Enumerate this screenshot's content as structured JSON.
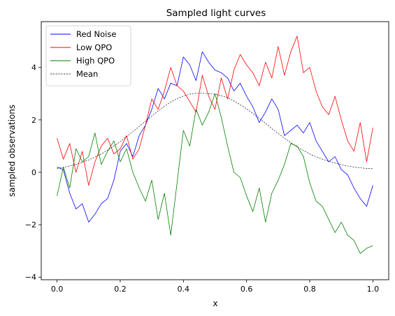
{
  "chart_data": {
    "type": "line",
    "title": "Sampled light curves",
    "xlabel": "x",
    "ylabel": "sampled observations",
    "xlim": [
      -0.05,
      1.05
    ],
    "ylim": [
      -4.1,
      5.75
    ],
    "xticks": [
      0.0,
      0.2,
      0.4,
      0.6,
      0.8,
      1.0
    ],
    "xtick_labels": [
      "0.0",
      "0.2",
      "0.4",
      "0.6",
      "0.8",
      "1.0"
    ],
    "yticks": [
      -4,
      -2,
      0,
      2,
      4
    ],
    "ytick_labels": [
      "−4",
      "−2",
      "0",
      "2",
      "4"
    ],
    "grid": false,
    "legend_position": "upper-left",
    "series": [
      {
        "name": "Red Noise",
        "color": "#0000ff",
        "style": "solid",
        "x": [
          0.0,
          0.02,
          0.04,
          0.06,
          0.08,
          0.1,
          0.12,
          0.14,
          0.16,
          0.18,
          0.2,
          0.22,
          0.24,
          0.26,
          0.28,
          0.3,
          0.32,
          0.34,
          0.36,
          0.38,
          0.4,
          0.42,
          0.44,
          0.46,
          0.48,
          0.5,
          0.52,
          0.54,
          0.56,
          0.58,
          0.6,
          0.62,
          0.64,
          0.66,
          0.68,
          0.7,
          0.72,
          0.74,
          0.76,
          0.78,
          0.8,
          0.82,
          0.84,
          0.86,
          0.88,
          0.9,
          0.92,
          0.94,
          0.96,
          0.98,
          1.0
        ],
        "y": [
          0.2,
          0.1,
          -0.8,
          -1.4,
          -1.2,
          -1.9,
          -1.6,
          -1.2,
          -1.0,
          -0.3,
          0.8,
          1.1,
          0.6,
          1.4,
          1.8,
          2.4,
          3.2,
          2.8,
          3.4,
          3.3,
          4.4,
          4.1,
          3.5,
          4.6,
          4.2,
          3.9,
          3.8,
          3.6,
          3.1,
          3.4,
          2.9,
          2.5,
          1.9,
          2.3,
          2.8,
          2.4,
          1.4,
          1.6,
          1.8,
          1.5,
          1.9,
          1.2,
          0.8,
          0.4,
          0.6,
          0.1,
          -0.1,
          -0.6,
          -1.0,
          -1.3,
          -0.5
        ]
      },
      {
        "name": "Low QPO",
        "color": "#ff0000",
        "style": "solid",
        "x": [
          0.0,
          0.02,
          0.04,
          0.06,
          0.08,
          0.1,
          0.12,
          0.14,
          0.16,
          0.18,
          0.2,
          0.22,
          0.24,
          0.26,
          0.28,
          0.3,
          0.32,
          0.34,
          0.36,
          0.38,
          0.4,
          0.42,
          0.44,
          0.46,
          0.48,
          0.5,
          0.52,
          0.54,
          0.56,
          0.58,
          0.6,
          0.62,
          0.64,
          0.66,
          0.68,
          0.7,
          0.72,
          0.74,
          0.76,
          0.78,
          0.8,
          0.82,
          0.84,
          0.86,
          0.88,
          0.9,
          0.92,
          0.94,
          0.96,
          0.98,
          1.0
        ],
        "y": [
          1.3,
          0.5,
          1.1,
          0.0,
          0.8,
          -0.5,
          0.4,
          1.0,
          1.3,
          0.7,
          0.9,
          1.4,
          0.5,
          0.9,
          1.8,
          2.8,
          2.4,
          3.1,
          4.0,
          3.3,
          3.1,
          2.7,
          2.3,
          3.7,
          2.9,
          2.4,
          3.6,
          2.8,
          3.9,
          4.5,
          4.1,
          3.8,
          3.3,
          4.2,
          3.6,
          4.8,
          3.7,
          4.6,
          5.2,
          3.8,
          4.0,
          3.1,
          2.5,
          2.2,
          2.9,
          2.0,
          1.2,
          0.8,
          1.9,
          0.4,
          1.7
        ]
      },
      {
        "name": "High QPO",
        "color": "#008000",
        "style": "solid",
        "x": [
          0.0,
          0.02,
          0.04,
          0.06,
          0.08,
          0.1,
          0.12,
          0.14,
          0.16,
          0.18,
          0.2,
          0.22,
          0.24,
          0.26,
          0.28,
          0.3,
          0.32,
          0.34,
          0.36,
          0.38,
          0.4,
          0.42,
          0.44,
          0.46,
          0.48,
          0.5,
          0.52,
          0.54,
          0.56,
          0.58,
          0.6,
          0.62,
          0.64,
          0.66,
          0.68,
          0.7,
          0.72,
          0.74,
          0.76,
          0.78,
          0.8,
          0.82,
          0.84,
          0.86,
          0.88,
          0.9,
          0.92,
          0.94,
          0.96,
          0.98,
          1.0
        ],
        "y": [
          -0.9,
          0.2,
          -0.6,
          0.9,
          0.4,
          0.6,
          1.5,
          0.3,
          0.8,
          1.2,
          0.4,
          0.9,
          0.0,
          -0.6,
          -1.1,
          -0.3,
          -1.8,
          -0.8,
          -2.4,
          -0.4,
          1.6,
          1.0,
          2.4,
          1.8,
          2.3,
          3.0,
          2.1,
          1.0,
          0.0,
          -0.2,
          -0.9,
          -1.5,
          -0.6,
          -1.9,
          -0.8,
          -0.3,
          0.3,
          1.1,
          1.0,
          0.6,
          -0.4,
          -1.1,
          -1.3,
          -1.8,
          -2.3,
          -1.9,
          -2.4,
          -2.6,
          -3.1,
          -2.9,
          -2.8
        ]
      },
      {
        "name": "Mean",
        "color": "#000000",
        "style": "dashed",
        "x": [
          0.0,
          0.02,
          0.04,
          0.06,
          0.08,
          0.1,
          0.12,
          0.14,
          0.16,
          0.18,
          0.2,
          0.22,
          0.24,
          0.26,
          0.28,
          0.3,
          0.32,
          0.34,
          0.36,
          0.38,
          0.4,
          0.42,
          0.44,
          0.46,
          0.48,
          0.5,
          0.52,
          0.54,
          0.56,
          0.58,
          0.6,
          0.62,
          0.64,
          0.66,
          0.68,
          0.7,
          0.72,
          0.74,
          0.76,
          0.78,
          0.8,
          0.82,
          0.84,
          0.86,
          0.88,
          0.9,
          0.92,
          0.94,
          0.96,
          0.98,
          1.0
        ],
        "y": [
          0.15,
          0.19,
          0.24,
          0.3,
          0.38,
          0.47,
          0.58,
          0.7,
          0.84,
          1.0,
          1.17,
          1.36,
          1.55,
          1.75,
          1.95,
          2.15,
          2.34,
          2.52,
          2.68,
          2.81,
          2.91,
          2.98,
          3.02,
          3.02,
          3.0,
          2.98,
          2.92,
          2.84,
          2.72,
          2.58,
          2.42,
          2.25,
          2.06,
          1.87,
          1.67,
          1.48,
          1.3,
          1.13,
          0.97,
          0.83,
          0.7,
          0.59,
          0.5,
          0.42,
          0.35,
          0.29,
          0.24,
          0.2,
          0.17,
          0.15,
          0.14
        ]
      }
    ]
  }
}
